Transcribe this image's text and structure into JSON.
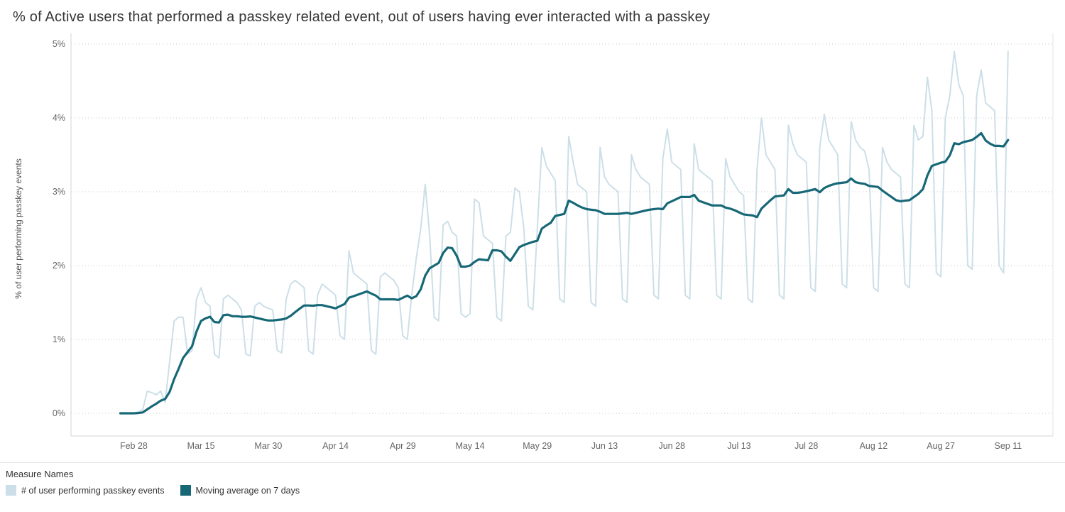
{
  "title": "% of Active users that performed a passkey related event, out of users having ever interacted with a passkey",
  "legend": {
    "title": "Measure Names",
    "items": [
      {
        "label": "# of user performing passkey events",
        "color": "#ccdfe8"
      },
      {
        "label": "Moving average on 7 days",
        "color": "#176877"
      }
    ]
  },
  "chart_data": {
    "type": "line",
    "title": "% of Active users that performed a passkey related event, out of users having ever interacted with a passkey",
    "xlabel": "",
    "ylabel": "% of user performing passkey events",
    "ylim": [
      0,
      5
    ],
    "y_ticks": [
      "0%",
      "1%",
      "2%",
      "3%",
      "4%",
      "5%"
    ],
    "grid": "dotted-horizontal",
    "legend_position": "bottom-left",
    "x_cadence": "daily",
    "x_start": "Feb 25",
    "x_end": "Sep 11",
    "x_tick_labels": [
      "Feb 28",
      "Mar 15",
      "Mar 30",
      "Apr 14",
      "Apr 29",
      "May 14",
      "May 29",
      "Jun 13",
      "Jun 28",
      "Jul 13",
      "Jul 28",
      "Aug 12",
      "Aug 27",
      "Sep 11"
    ],
    "x_tick_indices": [
      3,
      18,
      33,
      48,
      63,
      78,
      93,
      108,
      123,
      138,
      153,
      168,
      183,
      198
    ],
    "series": [
      {
        "name": "# of user performing passkey events",
        "color": "#ccdfe8",
        "unit": "%",
        "values": [
          0,
          0,
          0,
          0,
          0.02,
          0.05,
          0.3,
          0.28,
          0.25,
          0.3,
          0.15,
          0.7,
          1.25,
          1.3,
          1.3,
          0.8,
          0.85,
          1.55,
          1.7,
          1.5,
          1.45,
          0.8,
          0.75,
          1.55,
          1.6,
          1.55,
          1.5,
          1.4,
          0.8,
          0.78,
          1.45,
          1.5,
          1.45,
          1.42,
          1.4,
          0.85,
          0.82,
          1.55,
          1.75,
          1.8,
          1.75,
          1.7,
          0.85,
          0.8,
          1.6,
          1.75,
          1.7,
          1.65,
          1.6,
          1.05,
          1.0,
          2.2,
          1.9,
          1.85,
          1.8,
          1.75,
          0.85,
          0.8,
          1.85,
          1.9,
          1.85,
          1.8,
          1.7,
          1.05,
          1.0,
          1.6,
          2.1,
          2.5,
          3.1,
          2.4,
          1.3,
          1.25,
          2.55,
          2.6,
          2.45,
          2.4,
          1.35,
          1.3,
          1.35,
          2.9,
          2.85,
          2.4,
          2.35,
          2.3,
          1.3,
          1.25,
          2.4,
          2.45,
          3.05,
          3.0,
          2.5,
          1.45,
          1.4,
          2.5,
          3.6,
          3.35,
          3.25,
          3.15,
          1.55,
          1.5,
          3.75,
          3.4,
          3.1,
          3.05,
          3.0,
          1.5,
          1.45,
          3.6,
          3.2,
          3.1,
          3.05,
          3.0,
          1.55,
          1.5,
          3.5,
          3.3,
          3.2,
          3.15,
          3.1,
          1.6,
          1.55,
          3.45,
          3.85,
          3.4,
          3.35,
          3.3,
          1.6,
          1.55,
          3.65,
          3.3,
          3.25,
          3.2,
          3.15,
          1.6,
          1.55,
          3.45,
          3.2,
          3.1,
          3.0,
          2.95,
          1.55,
          1.5,
          3.3,
          4.0,
          3.5,
          3.4,
          3.3,
          1.6,
          1.55,
          3.9,
          3.65,
          3.5,
          3.45,
          3.4,
          1.7,
          1.65,
          3.6,
          4.05,
          3.7,
          3.6,
          3.5,
          1.75,
          1.7,
          3.95,
          3.7,
          3.6,
          3.55,
          3.3,
          1.7,
          1.65,
          3.6,
          3.4,
          3.3,
          3.25,
          3.2,
          1.75,
          1.7,
          3.9,
          3.7,
          3.75,
          4.55,
          4.1,
          1.9,
          1.85,
          4.0,
          4.3,
          4.9,
          4.45,
          4.3,
          2.0,
          1.95,
          4.3,
          4.65,
          4.2,
          4.15,
          4.1,
          2.0,
          1.9,
          4.9
        ]
      },
      {
        "name": "Moving average on 7 days",
        "color": "#176877",
        "unit": "%",
        "derived_from_series": 0,
        "window_days": 7
      }
    ]
  }
}
